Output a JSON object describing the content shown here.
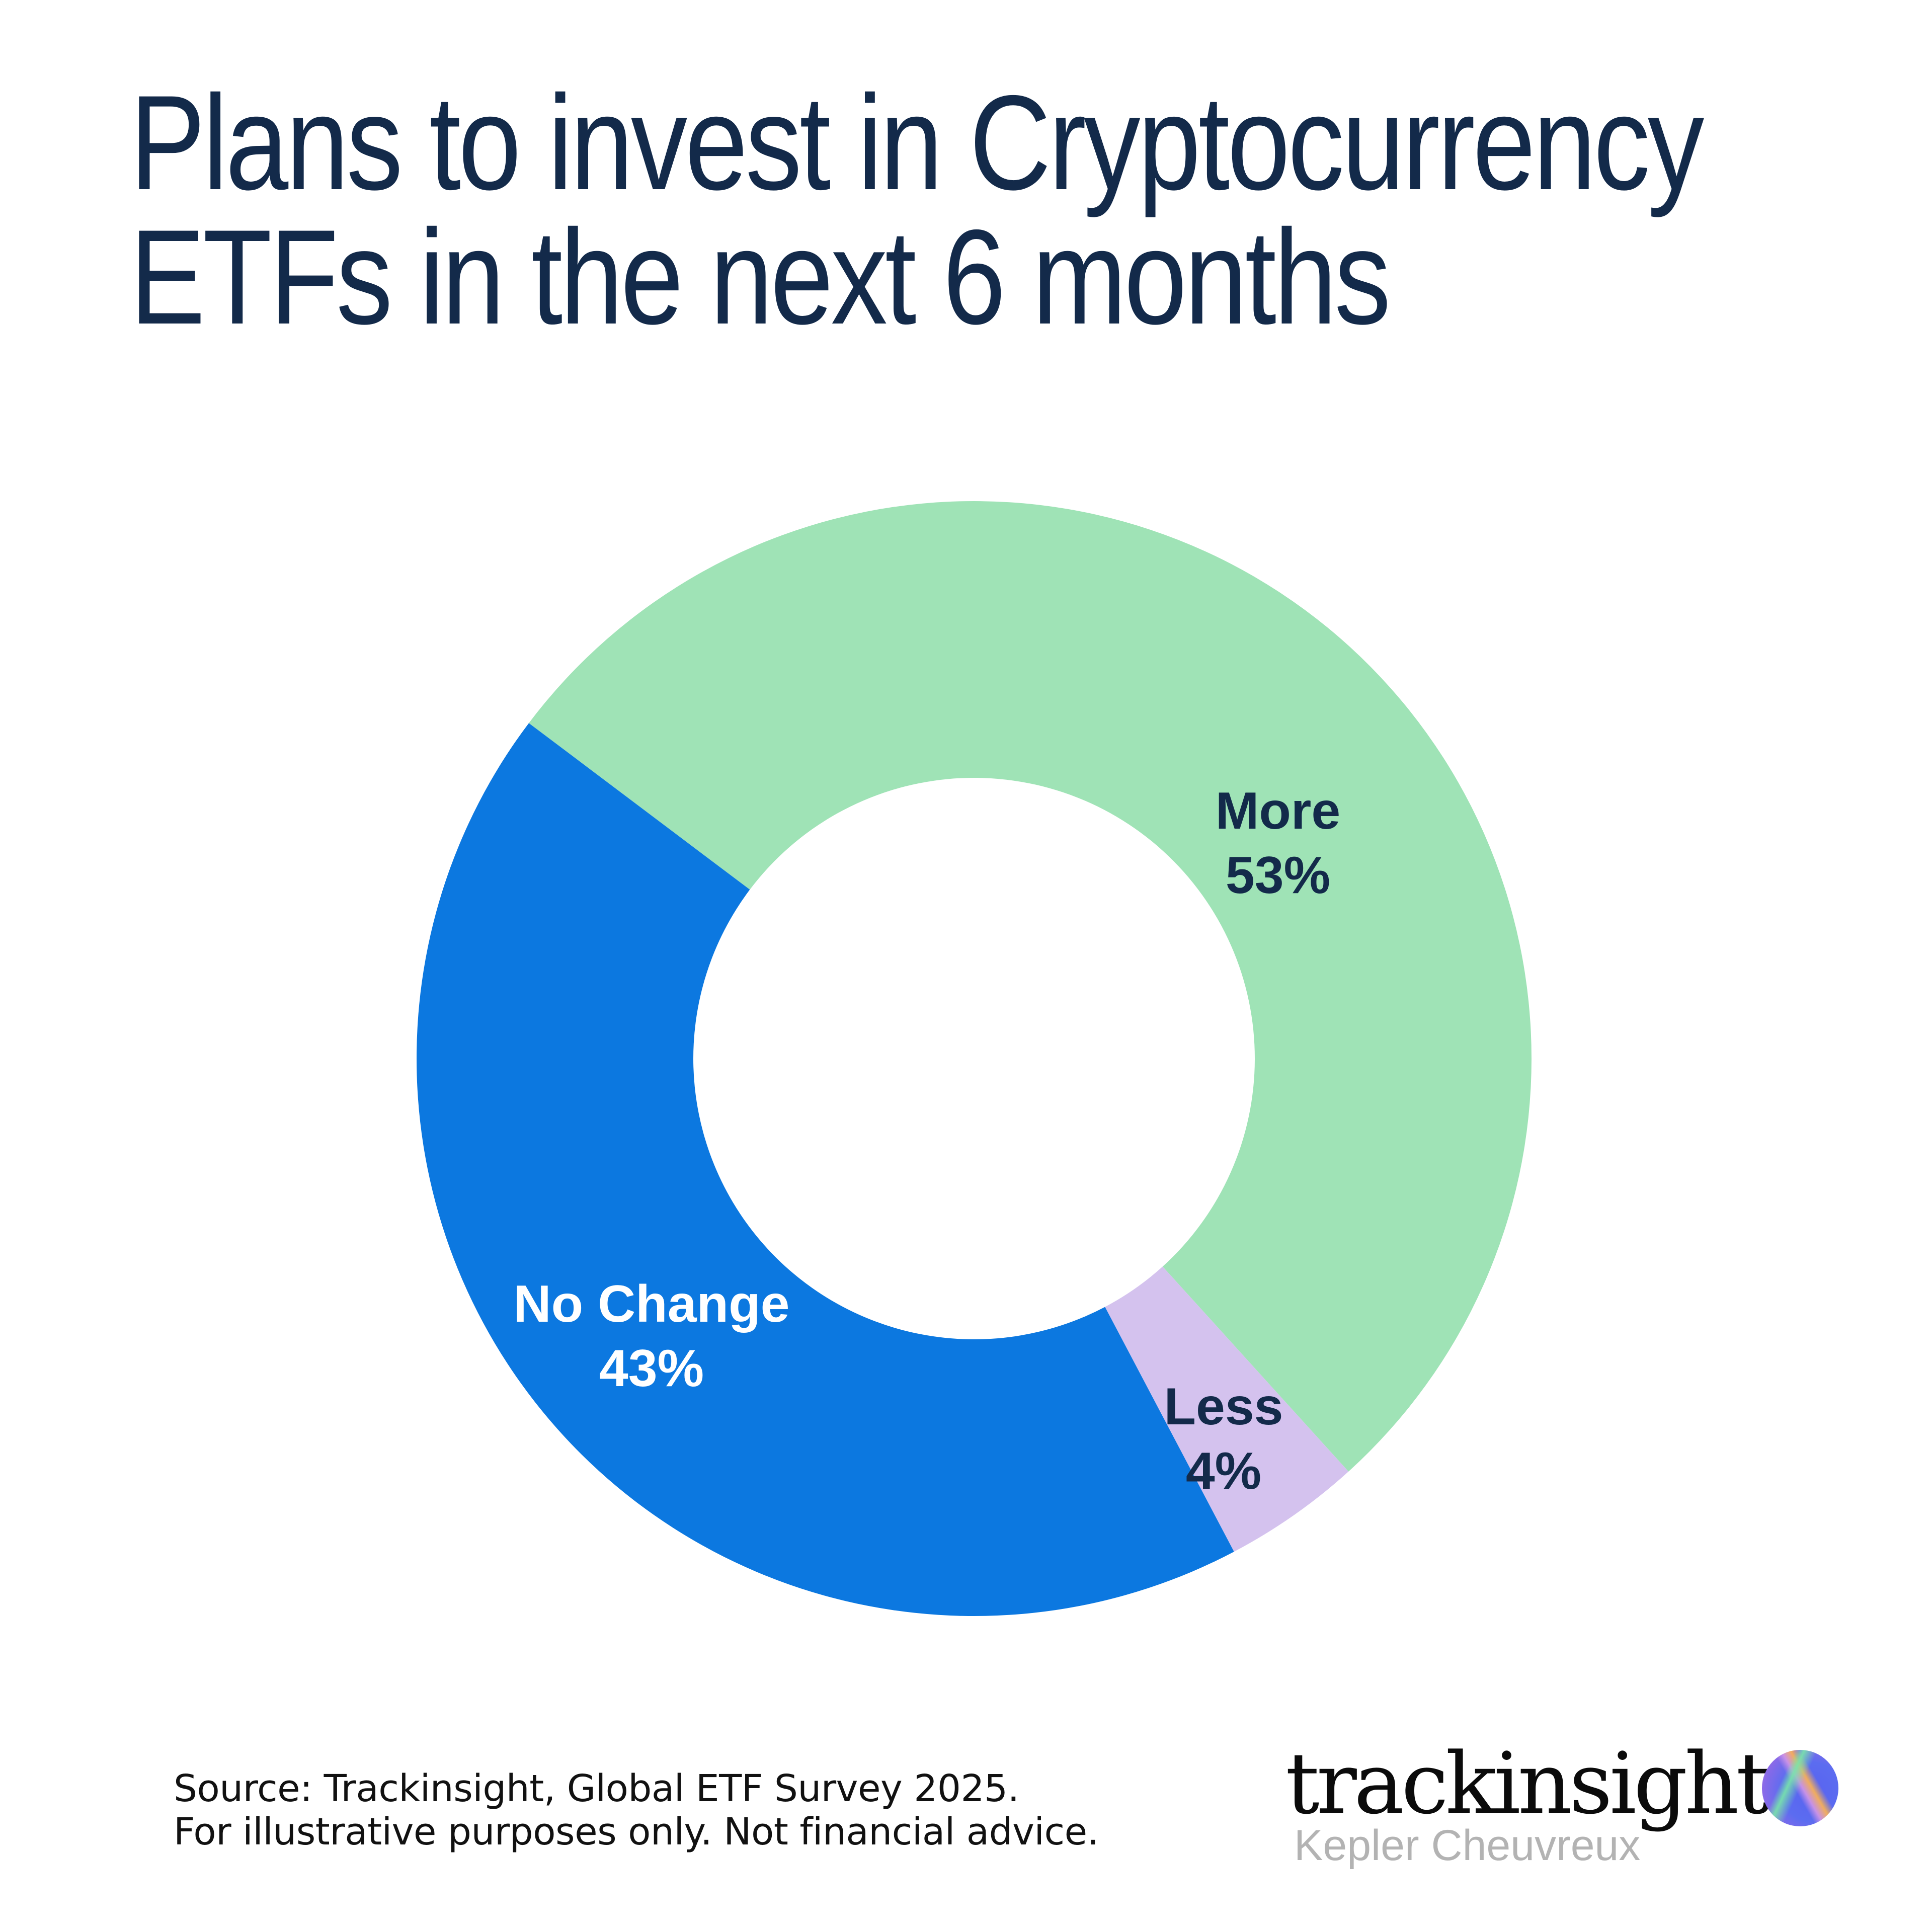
{
  "title": {
    "line1": "Plans to invest in Cryptocurrency",
    "line2": "ETFs in the next 6 months"
  },
  "chart_data": {
    "type": "pie",
    "subtype": "donut",
    "title": "Plans to invest in Cryptocurrency ETFs in the next 6 months",
    "categories": [
      "More",
      "Less",
      "No Change"
    ],
    "values": [
      53,
      4,
      43
    ],
    "unit": "%",
    "colors": [
      "#9fe3b6",
      "#d4c2ee",
      "#0c78e0"
    ],
    "start_angle_deg_clockwise_from_top": 307,
    "direction": "clockwise",
    "legend": "none (labels inside slices)"
  },
  "labels": {
    "more": {
      "name": "More",
      "value": "53%",
      "color": "#132a4a"
    },
    "less": {
      "name": "Less",
      "value": "4%",
      "color": "#132a4a"
    },
    "no_change": {
      "name": "No Change",
      "value": "43%",
      "color": "#ffffff"
    }
  },
  "footer": {
    "source_line": "Source: Trackinsight, Global ETF Survey 2025.",
    "disclaimer_line": "For illustrative purposes only. Not financial advice."
  },
  "brand": {
    "name": "trackinsight",
    "partner": "Kepler Cheuvreux",
    "icon": "gradient-orb-icon"
  },
  "colors": {
    "title": "#132a4a",
    "more": "#9fe3b6",
    "less": "#d4c2ee",
    "no_change": "#0c78e0",
    "background": "#ffffff"
  }
}
